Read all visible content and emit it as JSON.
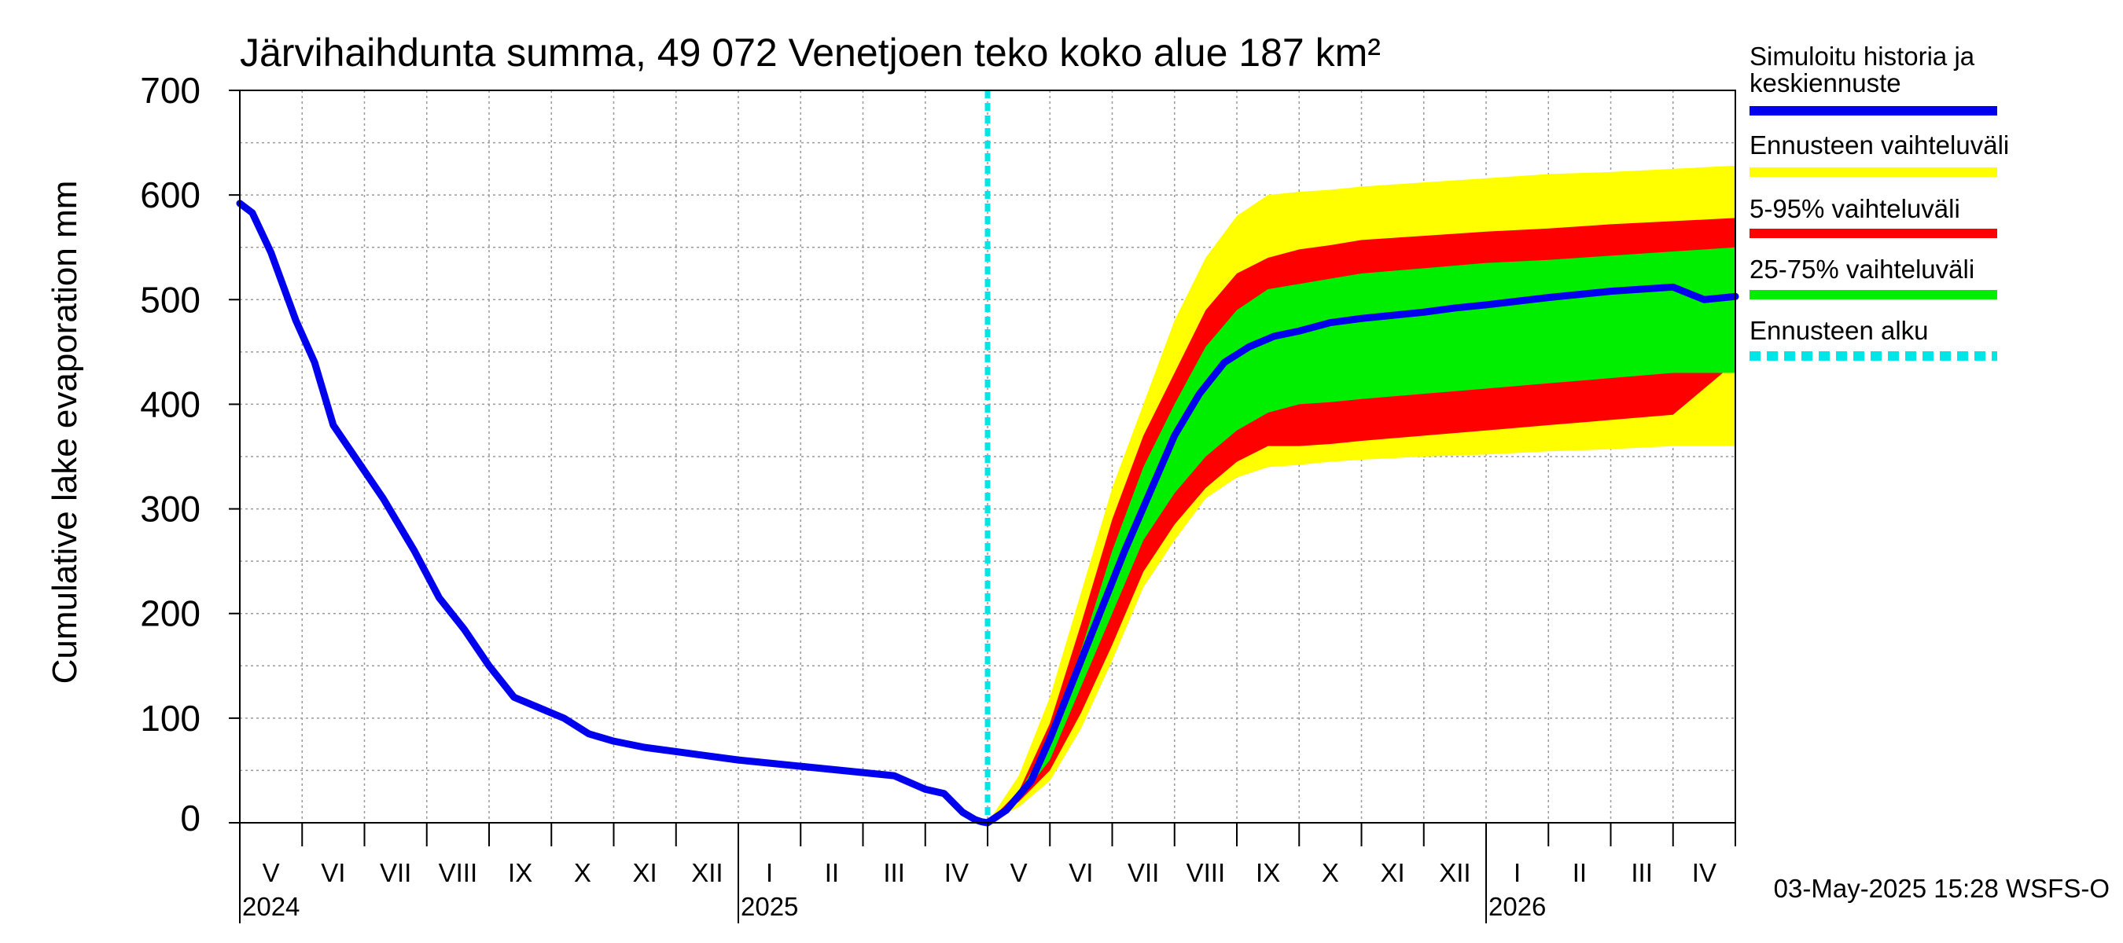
{
  "chart_data": {
    "type": "area",
    "title": "Järvihaihdunta summa, 49 072 Venetjoen teko koko alue 187 km²",
    "ylabel": "Cumulative lake evaporation   mm",
    "xlabel": "",
    "ylim": [
      0,
      700
    ],
    "yticks": [
      0,
      100,
      200,
      300,
      400,
      500,
      600,
      700
    ],
    "xlim_month_index": [
      0,
      24
    ],
    "month_labels": [
      "V",
      "VI",
      "VII",
      "VIII",
      "IX",
      "X",
      "XI",
      "XII",
      "I",
      "II",
      "III",
      "IV",
      "V",
      "VI",
      "VII",
      "VIII",
      "IX",
      "X",
      "XI",
      "XII",
      "I",
      "II",
      "III",
      "IV"
    ],
    "year_labels": [
      {
        "label": "2024",
        "month_index": 0
      },
      {
        "label": "2025",
        "month_index": 8
      },
      {
        "label": "2026",
        "month_index": 20
      }
    ],
    "forecast_start_month_index": 12,
    "colors": {
      "history": "#0000ee",
      "range_full": "#ffff00",
      "range_5_95": "#ff0000",
      "range_25_75": "#00ee00",
      "forecast_start": "#00e5e5",
      "grid": "#999999"
    },
    "series": [
      {
        "name": "Simuloitu historia ja keskiennuste",
        "x": [
          0,
          0.2,
          0.5,
          0.9,
          1.2,
          1.5,
          1.9,
          2.3,
          2.8,
          3.2,
          3.6,
          4.0,
          4.4,
          4.8,
          5.2,
          5.6,
          6.0,
          6.5,
          7.0,
          7.5,
          8.0,
          8.5,
          9.0,
          9.5,
          10.0,
          10.5,
          11.0,
          11.3,
          11.6,
          11.8,
          11.9,
          12.0,
          12.3,
          12.7,
          13.0,
          13.4,
          13.8,
          14.2,
          14.6,
          15.0,
          15.4,
          15.8,
          16.2,
          16.6,
          17.0,
          17.5,
          18.0,
          18.5,
          19.0,
          19.5,
          20.0,
          21.0,
          22.0,
          23.0,
          23.5,
          24.0
        ],
        "y": [
          592,
          583,
          545,
          480,
          440,
          380,
          345,
          310,
          260,
          215,
          185,
          150,
          120,
          110,
          100,
          85,
          78,
          72,
          68,
          64,
          60,
          57,
          54,
          51,
          48,
          45,
          32,
          28,
          10,
          3,
          1,
          0,
          12,
          40,
          80,
          140,
          200,
          260,
          315,
          370,
          410,
          440,
          455,
          465,
          470,
          478,
          482,
          485,
          488,
          492,
          495,
          502,
          508,
          512,
          500,
          503
        ]
      },
      {
        "name": "Ennusteen vaihteluväli",
        "x": [
          12,
          12.5,
          13,
          13.5,
          14,
          14.5,
          15,
          15.5,
          16,
          16.5,
          17,
          17.5,
          18,
          19,
          20,
          21,
          22,
          23,
          24
        ],
        "upper": [
          0,
          45,
          120,
          220,
          320,
          400,
          480,
          540,
          580,
          600,
          603,
          605,
          608,
          612,
          616,
          620,
          622,
          625,
          628
        ],
        "lower": [
          0,
          15,
          40,
          90,
          155,
          225,
          270,
          310,
          330,
          340,
          342,
          345,
          347,
          350,
          352,
          355,
          357,
          360,
          360
        ]
      },
      {
        "name": "5-95% vaihteluväli",
        "x": [
          12,
          12.5,
          13,
          13.5,
          14,
          14.5,
          15,
          15.5,
          16,
          16.5,
          17,
          17.5,
          18,
          19,
          20,
          21,
          22,
          23,
          24
        ],
        "upper": [
          0,
          30,
          95,
          190,
          290,
          370,
          430,
          490,
          525,
          540,
          548,
          552,
          557,
          561,
          565,
          568,
          572,
          575,
          578
        ],
        "lower": [
          0,
          20,
          50,
          105,
          170,
          240,
          285,
          320,
          345,
          360,
          360,
          362,
          365,
          370,
          375,
          380,
          385,
          390,
          440
        ]
      },
      {
        "name": "25-75% vaihteluväli",
        "x": [
          12,
          12.5,
          13,
          13.5,
          14,
          14.5,
          15,
          15.5,
          16,
          16.5,
          17,
          17.5,
          18,
          19,
          20,
          21,
          22,
          23,
          24
        ],
        "upper": [
          0,
          28,
          80,
          165,
          260,
          340,
          400,
          455,
          490,
          510,
          515,
          520,
          525,
          530,
          535,
          538,
          542,
          546,
          550
        ],
        "lower": [
          0,
          22,
          60,
          130,
          200,
          270,
          315,
          350,
          375,
          392,
          400,
          402,
          405,
          410,
          415,
          420,
          425,
          430,
          430
        ]
      }
    ],
    "legend": [
      {
        "label": "Simuloitu historia ja keskiennuste",
        "color": "#0000ee",
        "style": "solid"
      },
      {
        "label": "Ennusteen vaihteluväli",
        "color": "#ffff00",
        "style": "solid"
      },
      {
        "label": "5-95% vaihteluväli",
        "color": "#ff0000",
        "style": "solid"
      },
      {
        "label": "25-75% vaihteluväli",
        "color": "#00ee00",
        "style": "solid"
      },
      {
        "label": "Ennusteen alku",
        "color": "#00e5e5",
        "style": "dashed"
      }
    ],
    "footer": "03-May-2025 15:28 WSFS-O"
  }
}
